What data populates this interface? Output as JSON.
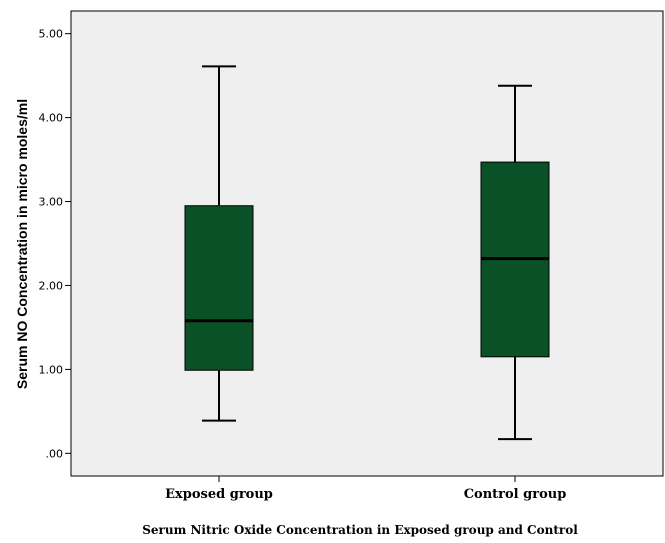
{
  "chart_data": {
    "type": "box",
    "categories": [
      "Exposed group",
      "Control group"
    ],
    "boxes": [
      {
        "name": "Exposed group",
        "min": 0.39,
        "q1": 0.99,
        "median": 1.58,
        "q3": 2.95,
        "max": 4.61
      },
      {
        "name": "Control group",
        "min": 0.17,
        "q1": 1.15,
        "median": 2.32,
        "q3": 3.47,
        "max": 4.38
      }
    ],
    "ylabel": "Serum NO Concentration in micro moles/ml",
    "xlabel": "Serum Nitric Oxide Concentration in Exposed group and Control",
    "ylim": [
      -0.27,
      5.27
    ],
    "yticks": [
      0,
      1,
      2,
      3,
      4,
      5
    ],
    "ytick_labels": [
      ".00",
      "1.00",
      "2.00",
      "3.00",
      "4.00",
      "5.00"
    ],
    "box_color": "#0b5128",
    "plot_background": "#efefef",
    "grid": false
  }
}
